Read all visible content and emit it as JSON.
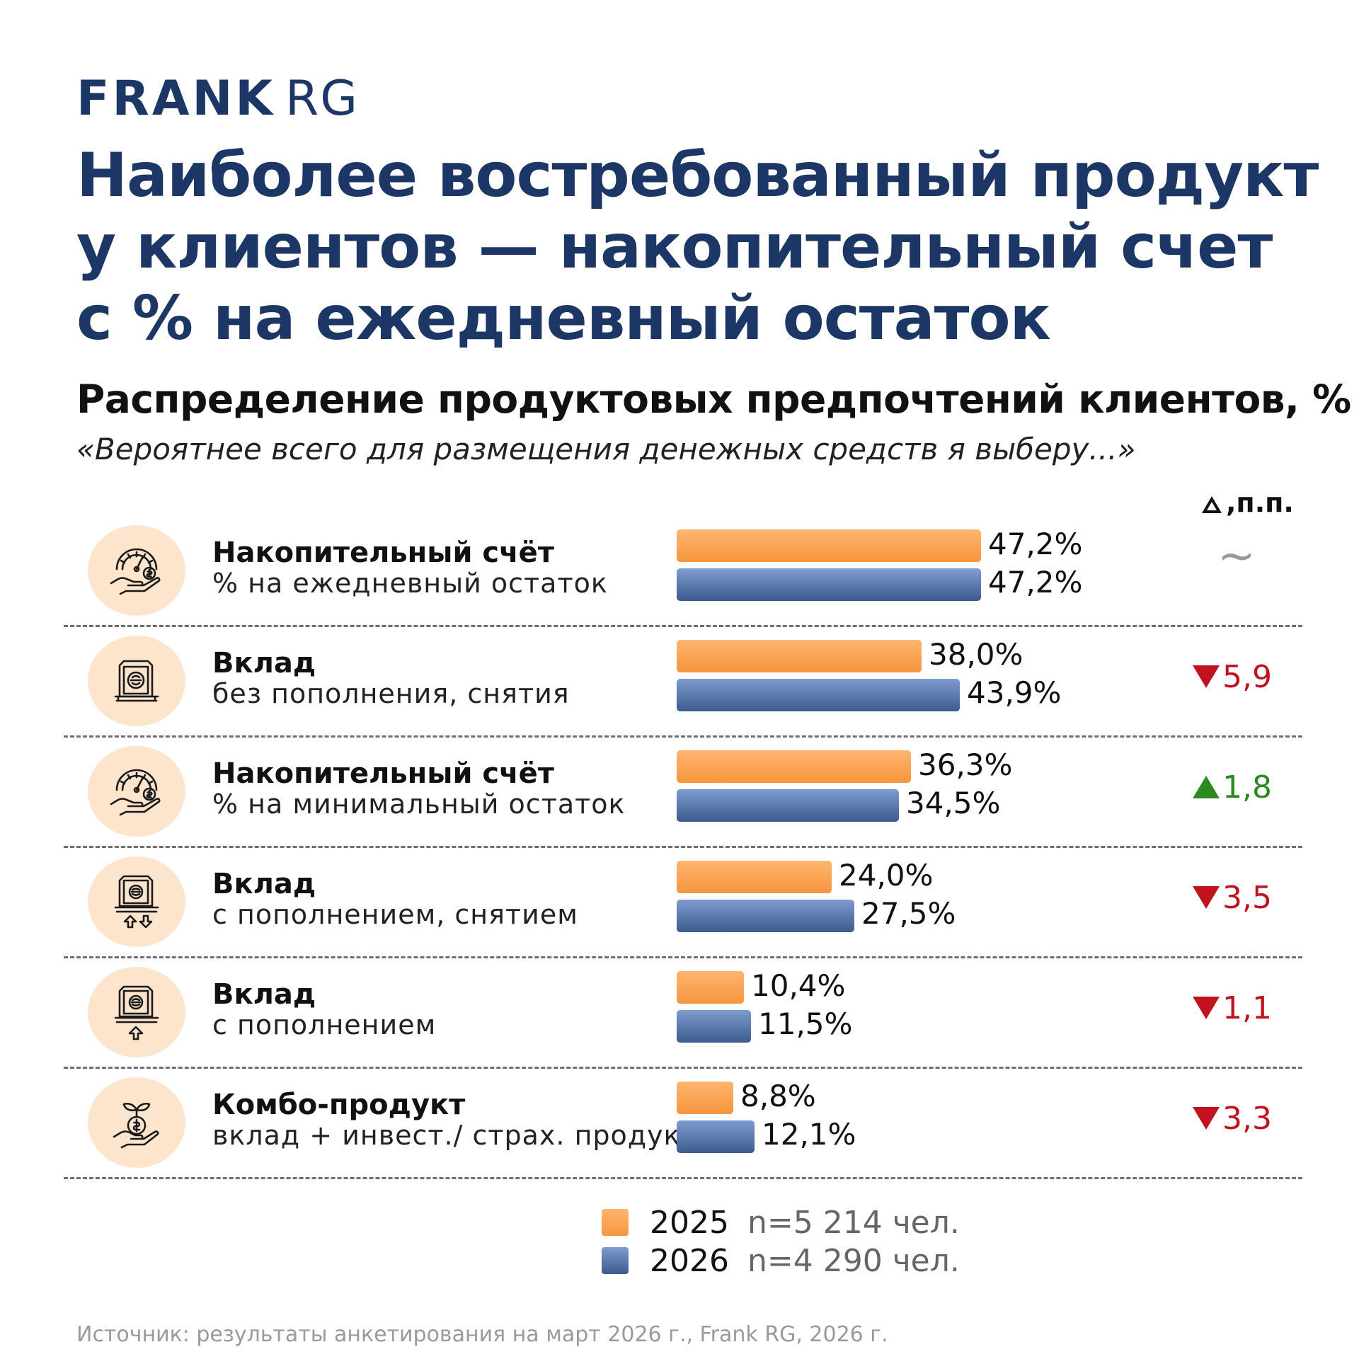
{
  "brand": {
    "logo_bold": "FRANK",
    "logo_light": "RG"
  },
  "header": {
    "title_lines": [
      "Наиболее востребованный продукт",
      "у клиентов — накопительный счет",
      "с % на ежедневный остаток"
    ],
    "subtitle": "Распределение продуктовых предпочтений клиентов, %",
    "quote": "«Вероятнее всего для размещения денежных средств я выберу...»",
    "delta_header": ",п.п."
  },
  "chart_data": {
    "type": "bar",
    "orientation": "horizontal",
    "title": "Распределение продуктовых предпочтений клиентов, %",
    "categories": [
      {
        "name": "Накопительный счёт",
        "detail": "% на ежедневный остаток",
        "icon": "savings-gauge-hand-icon"
      },
      {
        "name": "Вклад",
        "detail": "без пополнения, снятия",
        "icon": "deposit-safe-icon"
      },
      {
        "name": "Накопительный счёт",
        "detail": "% на минимальный остаток",
        "icon": "savings-gauge-hand-icon"
      },
      {
        "name": "Вклад",
        "detail": "с пополнением, снятием",
        "icon": "deposit-in-out-icon"
      },
      {
        "name": "Вклад",
        "detail": "с пополнением",
        "icon": "deposit-in-icon"
      },
      {
        "name": "Комбо-продукт",
        "detail": "вклад + инвест./ страх. продукт",
        "icon": "combo-sprout-coin-icon"
      }
    ],
    "series": [
      {
        "name": "2025",
        "n": "n=5 214 чел.",
        "color": "#f79b45",
        "values": [
          47.2,
          38.0,
          36.3,
          24.0,
          10.4,
          8.8
        ],
        "labels": [
          "47,2%",
          "38,0%",
          "36,3%",
          "24,0%",
          "10,4%",
          "8,8%"
        ]
      },
      {
        "name": "2026",
        "n": "n=4 290 чел.",
        "color": "#52709f",
        "values": [
          47.2,
          43.9,
          34.5,
          27.5,
          11.5,
          12.1
        ],
        "labels": [
          "47,2%",
          "43,9%",
          "34,5%",
          "27,5%",
          "11,5%",
          "12,1%"
        ]
      }
    ],
    "deltas": [
      {
        "direction": "flat",
        "text": "~"
      },
      {
        "direction": "down",
        "text": "5,9"
      },
      {
        "direction": "up",
        "text": "1,8"
      },
      {
        "direction": "down",
        "text": "3,5"
      },
      {
        "direction": "down",
        "text": "1,1"
      },
      {
        "direction": "down",
        "text": "3,3"
      }
    ],
    "xlim": [
      0,
      50
    ]
  },
  "source": "Источник: результаты анкетирования на март 2026 г., Frank RG, 2026 г."
}
